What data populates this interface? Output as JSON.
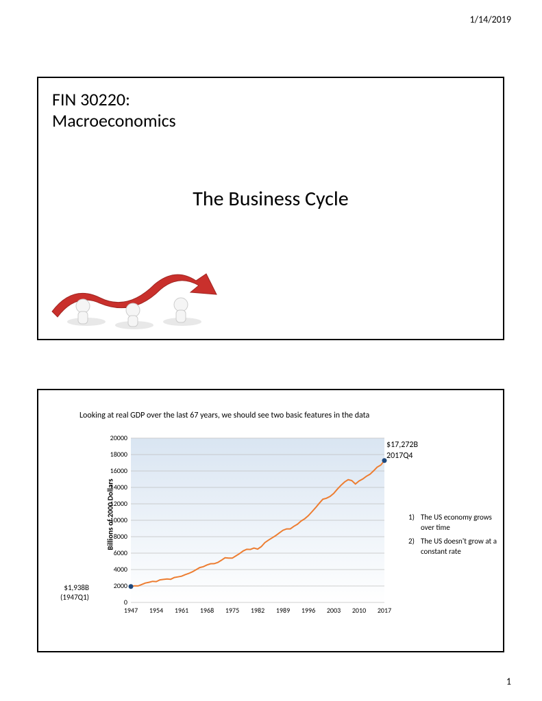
{
  "header": {
    "date": "1/14/2019"
  },
  "slide1": {
    "course_line1": "FIN 30220:",
    "course_line2": "Macroeconomics",
    "title": "The Business Cycle"
  },
  "slide2": {
    "chart_header": "Looking at real GDP over the last 67 years, we should see two basic features in the data",
    "chart": {
      "type": "line",
      "ylabel": "Billions of 2000 Dollars",
      "ylim": [
        0,
        20000
      ],
      "ytick_step": 2000,
      "yticks": [
        0,
        2000,
        4000,
        6000,
        8000,
        10000,
        12000,
        14000,
        16000,
        18000,
        20000
      ],
      "xlim": [
        1947,
        2017
      ],
      "xtick_step": 7,
      "xticks": [
        1947,
        1954,
        1961,
        1968,
        1975,
        1982,
        1989,
        1996,
        2003,
        2010,
        2017
      ],
      "line_color": "#ed7d31",
      "line_width": 2,
      "marker_start_color": "#1f497d",
      "marker_end_color": "#1f497d",
      "plot_bg_top": "#d9e5f2",
      "plot_bg_bottom": "#ffffff",
      "grid_color": "#bfbfbf",
      "tick_fontsize": 10,
      "label_fontsize": 11,
      "data": [
        {
          "x": 1947,
          "y": 1938
        },
        {
          "x": 1948,
          "y": 2020
        },
        {
          "x": 1949,
          "y": 2010
        },
        {
          "x": 1950,
          "y": 2185
        },
        {
          "x": 1951,
          "y": 2360
        },
        {
          "x": 1952,
          "y": 2450
        },
        {
          "x": 1953,
          "y": 2570
        },
        {
          "x": 1954,
          "y": 2530
        },
        {
          "x": 1955,
          "y": 2740
        },
        {
          "x": 1956,
          "y": 2800
        },
        {
          "x": 1957,
          "y": 2850
        },
        {
          "x": 1958,
          "y": 2820
        },
        {
          "x": 1959,
          "y": 3030
        },
        {
          "x": 1960,
          "y": 3110
        },
        {
          "x": 1961,
          "y": 3190
        },
        {
          "x": 1962,
          "y": 3380
        },
        {
          "x": 1963,
          "y": 3530
        },
        {
          "x": 1964,
          "y": 3730
        },
        {
          "x": 1965,
          "y": 3980
        },
        {
          "x": 1966,
          "y": 4240
        },
        {
          "x": 1967,
          "y": 4350
        },
        {
          "x": 1968,
          "y": 4560
        },
        {
          "x": 1969,
          "y": 4710
        },
        {
          "x": 1970,
          "y": 4720
        },
        {
          "x": 1971,
          "y": 4870
        },
        {
          "x": 1972,
          "y": 5130
        },
        {
          "x": 1973,
          "y": 5430
        },
        {
          "x": 1974,
          "y": 5400
        },
        {
          "x": 1975,
          "y": 5390
        },
        {
          "x": 1976,
          "y": 5670
        },
        {
          "x": 1977,
          "y": 5940
        },
        {
          "x": 1978,
          "y": 6270
        },
        {
          "x": 1979,
          "y": 6470
        },
        {
          "x": 1980,
          "y": 6450
        },
        {
          "x": 1981,
          "y": 6620
        },
        {
          "x": 1982,
          "y": 6490
        },
        {
          "x": 1983,
          "y": 6790
        },
        {
          "x": 1984,
          "y": 7280
        },
        {
          "x": 1985,
          "y": 7590
        },
        {
          "x": 1986,
          "y": 7860
        },
        {
          "x": 1987,
          "y": 8130
        },
        {
          "x": 1988,
          "y": 8470
        },
        {
          "x": 1989,
          "y": 8780
        },
        {
          "x": 1990,
          "y": 8950
        },
        {
          "x": 1991,
          "y": 8950
        },
        {
          "x": 1992,
          "y": 9270
        },
        {
          "x": 1993,
          "y": 9520
        },
        {
          "x": 1994,
          "y": 9910
        },
        {
          "x": 1995,
          "y": 10180
        },
        {
          "x": 1996,
          "y": 10560
        },
        {
          "x": 1997,
          "y": 11040
        },
        {
          "x": 1998,
          "y": 11530
        },
        {
          "x": 1999,
          "y": 12070
        },
        {
          "x": 2000,
          "y": 12560
        },
        {
          "x": 2001,
          "y": 12680
        },
        {
          "x": 2002,
          "y": 12910
        },
        {
          "x": 2003,
          "y": 13270
        },
        {
          "x": 2004,
          "y": 13780
        },
        {
          "x": 2005,
          "y": 14260
        },
        {
          "x": 2006,
          "y": 14660
        },
        {
          "x": 2007,
          "y": 14940
        },
        {
          "x": 2008,
          "y": 14830
        },
        {
          "x": 2009,
          "y": 14420
        },
        {
          "x": 2010,
          "y": 14780
        },
        {
          "x": 2011,
          "y": 15020
        },
        {
          "x": 2012,
          "y": 15350
        },
        {
          "x": 2013,
          "y": 15600
        },
        {
          "x": 2014,
          "y": 16010
        },
        {
          "x": 2015,
          "y": 16470
        },
        {
          "x": 2016,
          "y": 16720
        },
        {
          "x": 2017,
          "y": 17272
        }
      ],
      "start_point": {
        "label_value": "$1,938B",
        "label_period": "(1947Q1)"
      },
      "end_point": {
        "label_value": "$17,272B",
        "label_period": "2017Q4"
      }
    },
    "notes": [
      {
        "num": "1)",
        "text": "The US economy grows over time"
      },
      {
        "num": "2)",
        "text": "The US doesn't grow at a constant rate"
      }
    ]
  },
  "footer": {
    "page": "1"
  }
}
